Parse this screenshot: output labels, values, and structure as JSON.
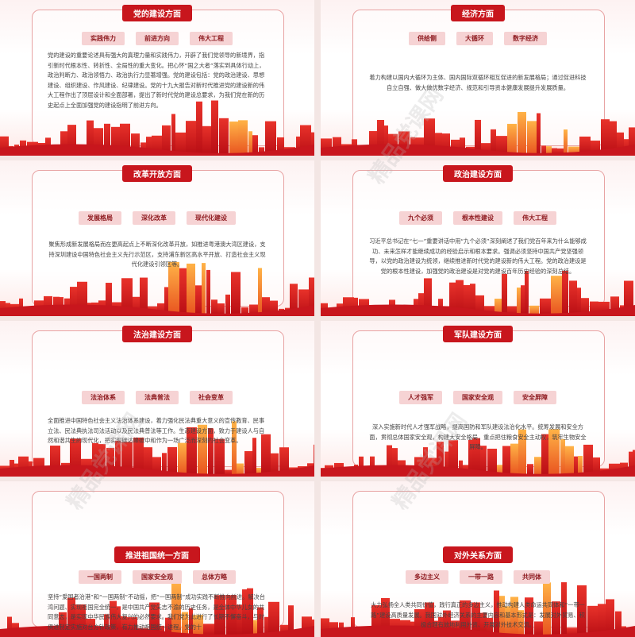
{
  "slides": [
    {
      "title": "党的建设方面",
      "tags": [
        "实践伟力",
        "前进方向",
        "伟大工程"
      ],
      "body": "党的建设的重要论述具有强大的真理力量和实践伟力，开辟了我们党领导的新境界，指引新时代根本性、转折性、全局性的重大变化。把心怀“国之大者”落实到具体行动上，政治判断力、政治领悟力、政治执行力显著增强。党的建设包括：党的政治建设、思想建设、组织建设、作风建设、纪律建设。党的十九大报告对新时代推进党的建设新的伟大工程作出了顶层设计和全面部署，提出了新时代党的建设总要求，为我们党在新的历史起点上全面加强党的建设指明了前进方向。"
    },
    {
      "title": "经济方面",
      "tags": [
        "供给侧",
        "大循环",
        "数字经济"
      ],
      "body": "着力构建以国内大循环为主体、国内国际双循环相互促进的新发展格局；通过促进科技自立自强、做大做优数字经济、规范和引导资本健康发展提升发展质量。"
    },
    {
      "title": "改革开放方面",
      "tags": [
        "发展格局",
        "深化改革",
        "现代化建设"
      ],
      "body": "聚焦形成新发展格局而在更高起点上不断深化改革开放，如推进粤港澳大湾区建设，支持深圳建设中国特色社会主义先行示范区，支持浦东新区高水平开放、打造社会主义现代化建设引领区等。"
    },
    {
      "title": "政治建设方面",
      "tags": [
        "九个必须",
        "根本性建设",
        "伟大工程"
      ],
      "body": "习近平总书记在“七一”重要讲话中用“九个必须”深刻阐述了我们党百年来为什么能够成功、未来怎样才能继续成功的经验启示和根本要求。强调必须坚持中国共产党坚强领导，以党的政治建设为统领，继续推进新时代党的建设新的伟大工程。党的政治建设是党的根本性建设，加强党的政治建设是对党的建设百年历史经验的深刻总结。"
    },
    {
      "title": "法治建设方面",
      "tags": [
        "法治体系",
        "法典普法",
        "社会变革"
      ],
      "body": "全面推进中国特色社会主义法治体系建设，着力强化民法典重大意义的宣传教育、民事立法、民法典执法司法活动以及民法典普法等工作。生态建设方面，致力于建设人与自然和谐共生的现代化，把实现碳达峰碳中和作为一场广泛而深刻的社会变革。"
    },
    {
      "title": "军队建设方面",
      "tags": [
        "人才强军",
        "国家安全观",
        "安全屏障"
      ],
      "body": "深入实施新时代人才强军战略，提高国防和军队建设法治化水平。统筹发展和安全方面，贯彻总体国家安全观，构建大安全格局，重点把住粮食安全主动权，筑牢生物安全屏障。"
    },
    {
      "title": "推进祖国统一方面",
      "tags": [
        "一国两制",
        "国家安全观",
        "总体方略"
      ],
      "body": "坚持“爱国者治港”和“一国两制”不动摇，把“一国两制”成功实践不断推向前进。解决台湾问题、实现祖国完全统一，是中国共产党矢志不渝的历史任务，是全体中华儿女的共同意志，是实现中华民族伟大复兴的必然要求。我们党为此进行了长期不懈奋斗，与时俱进制定实施对台方针政策，有力推动祖国统一进程。党的十"
    },
    {
      "title": "对外关系方面",
      "tags": [
        "多边主义",
        "一带一路",
        "共同体"
      ],
      "body": "大力弘扬全人类共同价值，践行真正的多边主义，推动构建人类命运共同体和“一带一路”建设高质量发展。我国对外经济关系的主要内容和基本形式是：发展对外贸易、积极合理有效地利用外资、开展对外技术交流。"
    }
  ],
  "watermark": "精品党课网"
}
